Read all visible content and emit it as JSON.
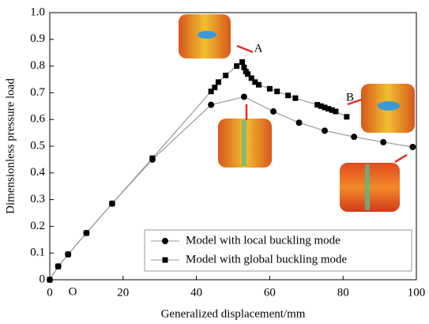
{
  "chart_data": {
    "type": "line",
    "x_label": "Generalized displacement/mm",
    "y_label": "Dimensionless pressure load",
    "xlim": [
      0,
      100
    ],
    "xticks": [
      0,
      20,
      40,
      60,
      80,
      100
    ],
    "ylim": [
      0,
      1
    ],
    "yticks": [
      0,
      0.1,
      0.2,
      0.3,
      0.4,
      0.5,
      0.6,
      0.7,
      0.8,
      0.9,
      {
        "value": 1,
        "label": "1.0"
      }
    ],
    "line_color": "#999999",
    "legend": "lower right",
    "annotations": [
      "A",
      "B",
      "O"
    ],
    "series": [
      {
        "name": "Model with local buckling mode",
        "marker": "circle",
        "color": "#000000",
        "x": [
          0,
          2.3,
          5,
          10,
          17,
          28,
          44,
          53,
          61,
          68,
          75,
          83,
          91,
          99
        ],
        "values": [
          0,
          0.05,
          0.095,
          0.175,
          0.285,
          0.45,
          0.655,
          0.685,
          0.63,
          0.588,
          0.558,
          0.535,
          0.515,
          0.497
        ]
      },
      {
        "name": "Model with global buckling mode",
        "marker": "square",
        "color": "#000000",
        "x": [
          0,
          2.3,
          5,
          10,
          17,
          28,
          44,
          45,
          46,
          48,
          51,
          52.5,
          53,
          53.5,
          54,
          55,
          56,
          57,
          60,
          62,
          65,
          67,
          73,
          74,
          75,
          76,
          77,
          78,
          81
        ],
        "values": [
          0,
          0.05,
          0.095,
          0.175,
          0.285,
          0.455,
          0.705,
          0.72,
          0.74,
          0.765,
          0.8,
          0.815,
          0.795,
          0.78,
          0.77,
          0.755,
          0.74,
          0.73,
          0.715,
          0.705,
          0.69,
          0.68,
          0.655,
          0.65,
          0.645,
          0.64,
          0.635,
          0.63,
          0.61
        ]
      }
    ]
  }
}
